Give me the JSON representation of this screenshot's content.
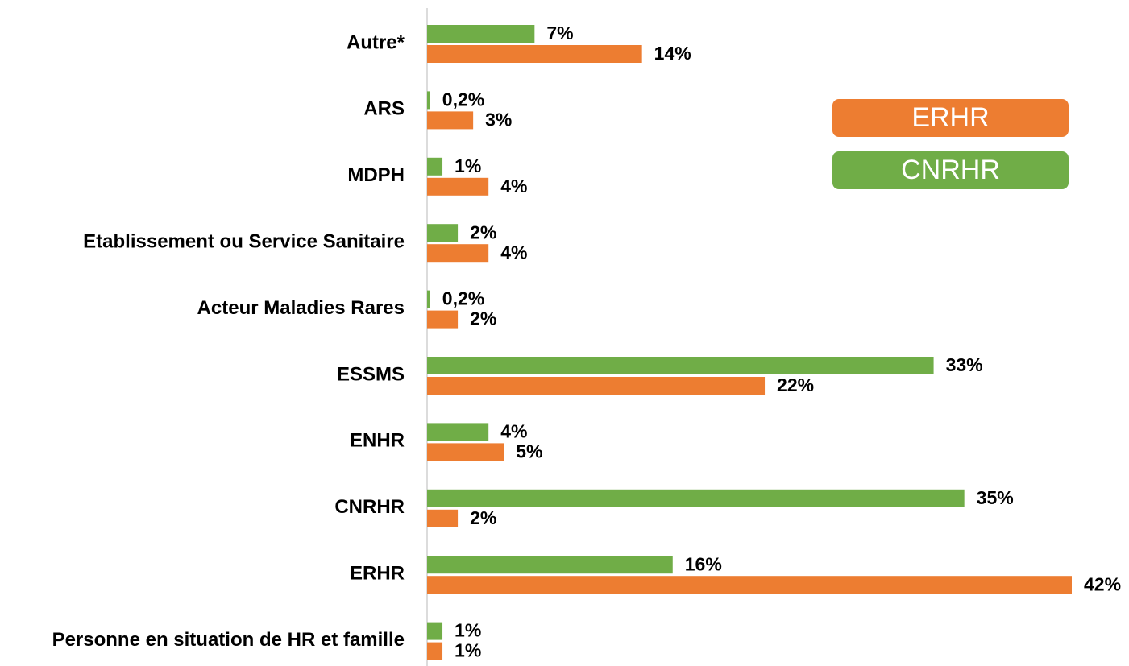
{
  "chart_data": {
    "type": "hbar",
    "categories": [
      "Autre*",
      "ARS",
      "MDPH",
      "Etablissement ou Service Sanitaire",
      "Acteur Maladies Rares",
      "ESSMS",
      "ENHR",
      "CNRHR",
      "ERHR",
      "Personne en situation de HR et famille"
    ],
    "series": [
      {
        "name": "CNRHR",
        "color": "#70ad47",
        "values": [
          7,
          0.2,
          1,
          2,
          0.2,
          33,
          4,
          35,
          16,
          1
        ],
        "value_labels": [
          "7%",
          "0,2%",
          "1%",
          "2%",
          "0,2%",
          "33%",
          "4%",
          "35%",
          "16%",
          "1%"
        ]
      },
      {
        "name": "ERHR",
        "color": "#ed7d31",
        "values": [
          14,
          3,
          4,
          4,
          2,
          22,
          5,
          2,
          42,
          1
        ],
        "value_labels": [
          "14%",
          "3%",
          "4%",
          "4%",
          "2%",
          "22%",
          "5%",
          "2%",
          "42%",
          "1%"
        ]
      }
    ]
  }
}
